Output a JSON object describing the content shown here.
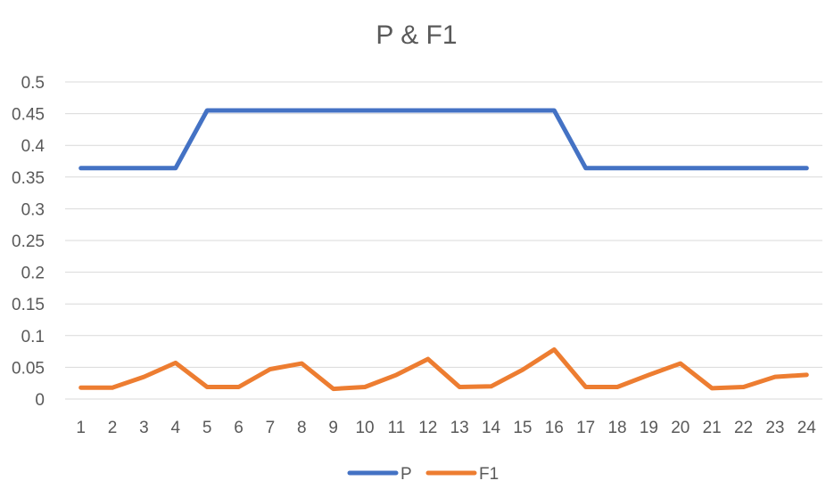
{
  "chart_data": {
    "type": "line",
    "title": "P & F1",
    "xlabel": "",
    "ylabel": "",
    "categories": [
      "1",
      "2",
      "3",
      "4",
      "5",
      "6",
      "7",
      "8",
      "9",
      "10",
      "11",
      "12",
      "13",
      "14",
      "15",
      "16",
      "17",
      "18",
      "19",
      "20",
      "21",
      "22",
      "23",
      "24"
    ],
    "y_ticks": [
      "0",
      "0.05",
      "0.1",
      "0.15",
      "0.2",
      "0.25",
      "0.3",
      "0.35",
      "0.4",
      "0.45",
      "0.5"
    ],
    "ylim": [
      0,
      0.5
    ],
    "grid": true,
    "legend_position": "bottom",
    "series": [
      {
        "name": "P",
        "color": "#4472c4",
        "values": [
          0.364,
          0.364,
          0.364,
          0.364,
          0.455,
          0.455,
          0.455,
          0.455,
          0.455,
          0.455,
          0.455,
          0.455,
          0.455,
          0.455,
          0.455,
          0.455,
          0.364,
          0.364,
          0.364,
          0.364,
          0.364,
          0.364,
          0.364,
          0.364
        ]
      },
      {
        "name": "F1",
        "color": "#ed7d31",
        "values": [
          0.018,
          0.018,
          0.035,
          0.057,
          0.019,
          0.019,
          0.047,
          0.056,
          0.016,
          0.019,
          0.038,
          0.063,
          0.019,
          0.02,
          0.046,
          0.078,
          0.019,
          0.019,
          0.038,
          0.056,
          0.017,
          0.019,
          0.035,
          0.038
        ]
      }
    ]
  }
}
